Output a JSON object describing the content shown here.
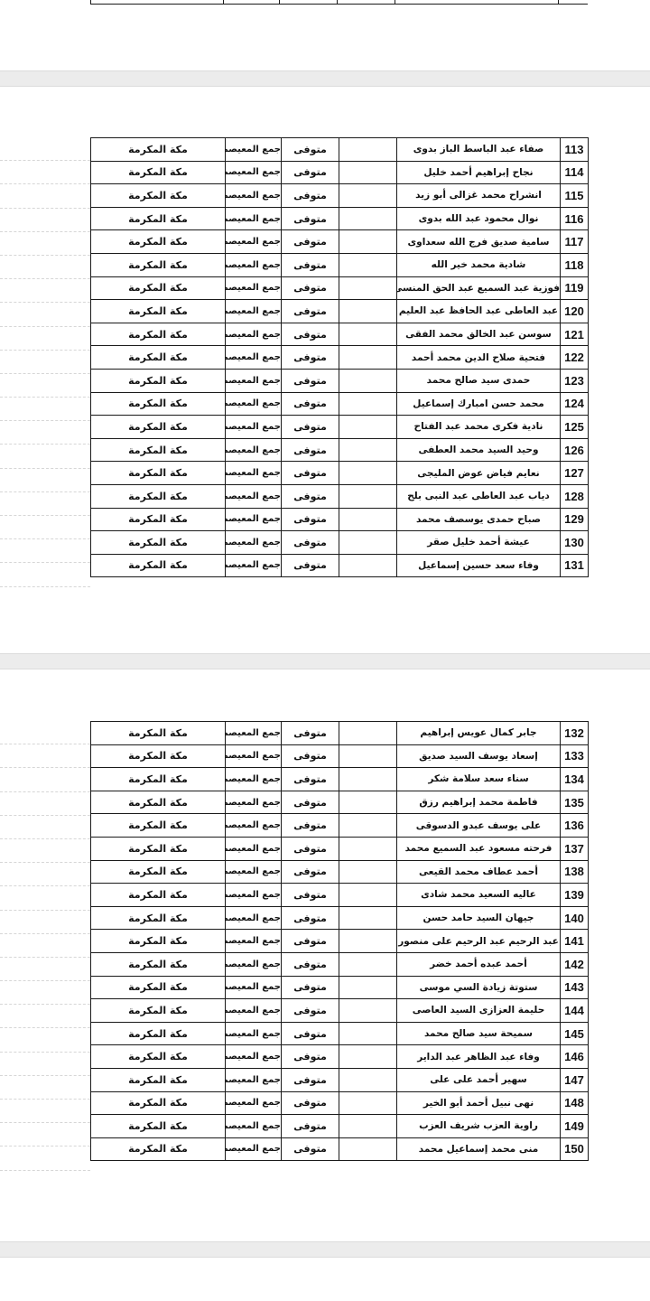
{
  "defaults": {
    "status": "متوفى",
    "district": "جمع المعيصم",
    "city": "مكة المكرمة"
  },
  "tables": [
    {
      "rows": [
        {
          "num": "113",
          "name": "صفاء عبد الباسط الباز بدوى"
        },
        {
          "num": "114",
          "name": "نجاح إبراهيم أحمد خليل"
        },
        {
          "num": "115",
          "name": "انشراح محمد غزالى أبو زيد"
        },
        {
          "num": "116",
          "name": "نوال محمود عبد الله بدوى"
        },
        {
          "num": "117",
          "name": "سامية صديق فرج الله سعداوى"
        },
        {
          "num": "118",
          "name": "شادية محمد خير الله"
        },
        {
          "num": "119",
          "name": "فوزية عبد السميع عبد الحق المنسى"
        },
        {
          "num": "120",
          "name": "عبد العاطى عبد الحافظ عبد العليم"
        },
        {
          "num": "121",
          "name": "سوسن عبد الخالق محمد الفقى"
        },
        {
          "num": "122",
          "name": "فتحية صلاح الدين محمد أحمد"
        },
        {
          "num": "123",
          "name": "حمدى سيد صالح محمد"
        },
        {
          "num": "124",
          "name": "محمد حسن امبارك إسماعيل"
        },
        {
          "num": "125",
          "name": "نادية فكرى محمد عبد الفتاح"
        },
        {
          "num": "126",
          "name": "وحيد السيد محمد العطفى"
        },
        {
          "num": "127",
          "name": "نعايم فياض عوض المليجى"
        },
        {
          "num": "128",
          "name": "دياب عبد العاطى عبد النبى بلح"
        },
        {
          "num": "129",
          "name": "صباح حمدى يوسصف محمد"
        },
        {
          "num": "130",
          "name": "عيشة أحمد خليل صقر"
        },
        {
          "num": "131",
          "name": "وفاء سعد حسين إسماعيل"
        }
      ]
    },
    {
      "rows": [
        {
          "num": "132",
          "name": "جابر كمال عويس إبراهيم"
        },
        {
          "num": "133",
          "name": "إسعاد يوسف السيد صديق"
        },
        {
          "num": "134",
          "name": "سناء سعد سلامة شكر"
        },
        {
          "num": "135",
          "name": "فاطمة محمد إبراهيم رزق"
        },
        {
          "num": "136",
          "name": "على يوسف عبدو الدسوقى"
        },
        {
          "num": "137",
          "name": "فرحته مسعود عبد السميع محمد"
        },
        {
          "num": "138",
          "name": "أحمد عطاف محمد القيعى"
        },
        {
          "num": "139",
          "name": "عاليه السعيد محمد شادى"
        },
        {
          "num": "140",
          "name": "جيهان السيد حامد حسن"
        },
        {
          "num": "141",
          "name": "عبد الرحيم عبد الرحيم على منصور"
        },
        {
          "num": "142",
          "name": "أحمد عبده أحمد خضر"
        },
        {
          "num": "143",
          "name": "ستوتة زيادة السي موسى"
        },
        {
          "num": "144",
          "name": "حليمة العزازى السيد العاصى"
        },
        {
          "num": "145",
          "name": "سميحة سيد صالح محمد"
        },
        {
          "num": "146",
          "name": "وفاء عبد الظاهر عبد الداير"
        },
        {
          "num": "147",
          "name": "سهير أحمد على على"
        },
        {
          "num": "148",
          "name": "نهى نبيل أحمد أبو الخير"
        },
        {
          "num": "149",
          "name": "راوية العزب شريف العزب"
        },
        {
          "num": "150",
          "name": "منى محمد إسماعيل محمد"
        }
      ]
    }
  ]
}
